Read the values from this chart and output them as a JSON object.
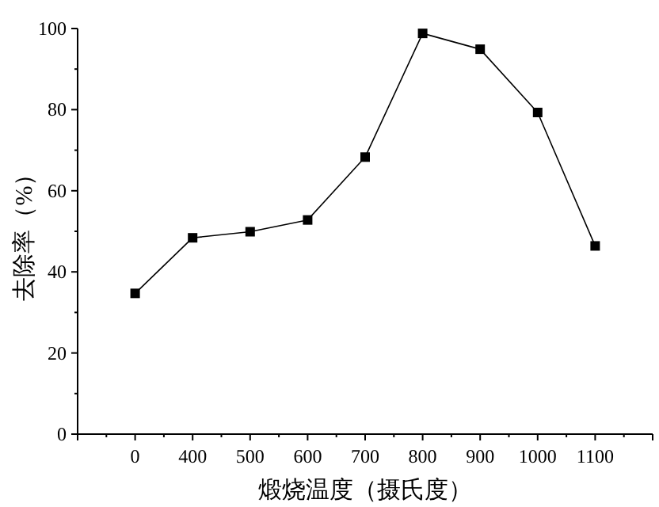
{
  "chart_data": {
    "type": "line",
    "xlabel": "煅烧温度（摄氏度）",
    "ylabel": "去除率（%）",
    "categories": [
      "0",
      "400",
      "500",
      "600",
      "700",
      "800",
      "900",
      "1000",
      "1100"
    ],
    "series": [
      {
        "color": "#000000",
        "values": [
          34.7,
          48.4,
          49.9,
          52.8,
          68.3,
          98.8,
          94.9,
          79.3,
          46.4
        ]
      }
    ],
    "ylim": [
      0,
      100
    ],
    "yticks": [
      0,
      20,
      40,
      60,
      80,
      100
    ],
    "marker": "square",
    "line_style": "solid"
  }
}
